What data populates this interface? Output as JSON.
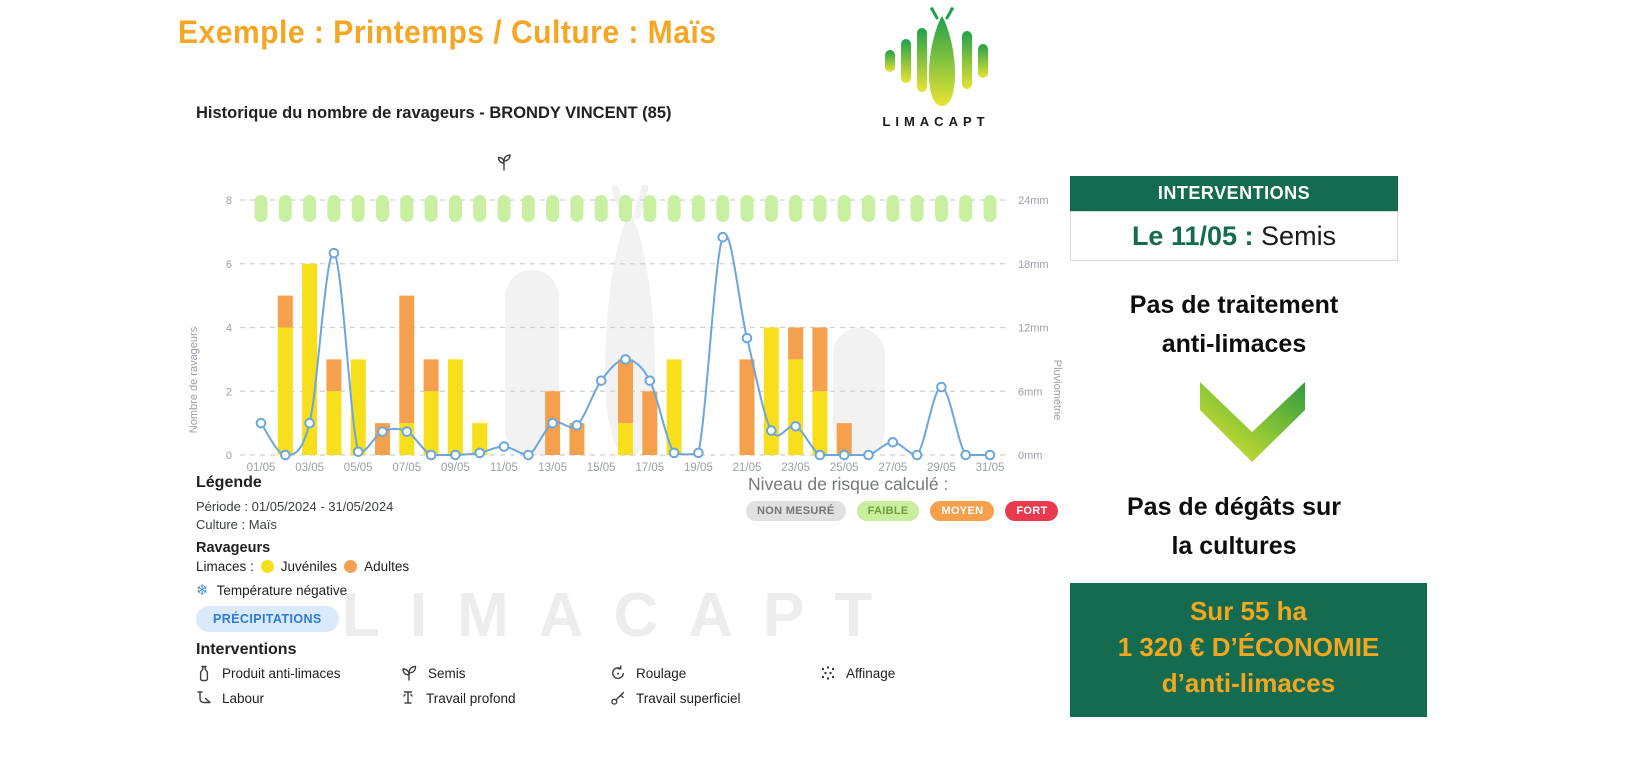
{
  "page_title": "Exemple : Printemps / Culture : Maïs",
  "logo": {
    "wordmark": "LIMACAPT"
  },
  "watermark": "LIMACAPT",
  "chart": {
    "title": "Historique du nombre de ravageurs - BRONDY VINCENT (85)"
  },
  "chart_data": {
    "type": "bar+line",
    "title": "Historique du nombre de ravageurs - BRONDY VINCENT (85)",
    "grid": "dashed-horizontal",
    "categories": [
      "01/05",
      "02/05",
      "03/05",
      "04/05",
      "05/05",
      "06/05",
      "07/05",
      "08/05",
      "09/05",
      "10/05",
      "11/05",
      "12/05",
      "13/05",
      "14/05",
      "15/05",
      "16/05",
      "17/05",
      "18/05",
      "19/05",
      "20/05",
      "21/05",
      "22/05",
      "23/05",
      "24/05",
      "25/05",
      "26/05",
      "27/05",
      "28/05",
      "29/05",
      "30/05",
      "31/05"
    ],
    "x_tick_labels": [
      "01/05",
      "03/05",
      "05/05",
      "07/05",
      "09/05",
      "11/05",
      "13/05",
      "15/05",
      "17/05",
      "19/05",
      "21/05",
      "23/05",
      "25/05",
      "27/05",
      "29/05",
      "31/05"
    ],
    "y_left": {
      "label": "Nombre de ravageurs",
      "min": 0,
      "max": 8,
      "ticks": [
        0,
        2,
        4,
        6,
        8
      ]
    },
    "y_right": {
      "label": "Pluviométrie",
      "min": 0,
      "max": 24,
      "tick_labels": [
        "0mm",
        "6mm",
        "12mm",
        "18mm",
        "24mm"
      ]
    },
    "series": [
      {
        "name": "Juvéniles",
        "type": "bar",
        "stack": "ravageurs",
        "color": "#F7DF1C",
        "values": [
          0,
          4,
          6,
          2,
          3,
          0,
          1,
          2,
          3,
          1,
          0,
          0,
          0,
          0,
          0,
          1,
          0,
          3,
          0,
          0,
          0,
          4,
          3,
          2,
          0,
          0,
          0,
          0,
          0,
          0,
          0
        ]
      },
      {
        "name": "Adultes",
        "type": "bar",
        "stack": "ravageurs",
        "color": "#F5A04C",
        "values": [
          0,
          1,
          0,
          1,
          0,
          1,
          4,
          1,
          0,
          0,
          0,
          0,
          2,
          1,
          0,
          2,
          2,
          0,
          0,
          0,
          3,
          0,
          1,
          2,
          1,
          0,
          0,
          0,
          0,
          0,
          0
        ]
      },
      {
        "name": "Précipitations",
        "type": "line",
        "axis": "right",
        "unit": "mm",
        "color": "#6BA7DB",
        "values": [
          3,
          0,
          3,
          19,
          0.3,
          2.2,
          2.2,
          0,
          0,
          0.2,
          0.8,
          0,
          3,
          2.8,
          7,
          9,
          7,
          0.2,
          0.2,
          20.5,
          11,
          2.3,
          2.7,
          0,
          0,
          0,
          1.2,
          0,
          6.4,
          0,
          0
        ]
      }
    ],
    "risk_row": {
      "color": "#C9EFA0",
      "levels": [
        "FAIBLE",
        "FAIBLE",
        "FAIBLE",
        "FAIBLE",
        "FAIBLE",
        "FAIBLE",
        "FAIBLE",
        "FAIBLE",
        "FAIBLE",
        "FAIBLE",
        "FAIBLE",
        "FAIBLE",
        "FAIBLE",
        "FAIBLE",
        "FAIBLE",
        "FAIBLE",
        "FAIBLE",
        "FAIBLE",
        "FAIBLE",
        "FAIBLE",
        "FAIBLE",
        "FAIBLE",
        "FAIBLE",
        "FAIBLE",
        "FAIBLE",
        "FAIBLE",
        "FAIBLE",
        "FAIBLE",
        "FAIBLE",
        "FAIBLE",
        "FAIBLE"
      ]
    },
    "event_markers": [
      {
        "date": "11/05",
        "type": "semis",
        "icon": "sprout-icon"
      }
    ]
  },
  "legend": {
    "heading": "Légende",
    "periode": "Période : 01/05/2024 - 31/05/2024",
    "culture": "Culture : Maïs",
    "ravageurs_heading": "Ravageurs",
    "limaces_label": "Limaces :",
    "juveniles": "Juvéniles",
    "adultes": "Adultes",
    "temperature": "Température négative",
    "precipitations_chip": "PRÉCIPITATIONS"
  },
  "risk": {
    "label": "Niveau de risque calculé :",
    "badges": [
      {
        "label": "NON MESURÉ",
        "bg": "#E0E0E0",
        "fg": "#757575"
      },
      {
        "label": "FAIBLE",
        "bg": "#C9EE9E",
        "fg": "#6E9E3C"
      },
      {
        "label": "MOYEN",
        "bg": "#F5A04C",
        "fg": "#FFFFFF"
      },
      {
        "label": "FORT",
        "bg": "#E83B50",
        "fg": "#FFFFFF"
      }
    ]
  },
  "interventions_legend": {
    "heading": "Interventions",
    "items": [
      {
        "label": "Produit anti-limaces",
        "icon": "bottle-icon"
      },
      {
        "label": "Labour",
        "icon": "plow-icon"
      },
      {
        "label": "Semis",
        "icon": "sprout-icon"
      },
      {
        "label": "Travail profond",
        "icon": "deep-till-icon"
      },
      {
        "label": "Roulage",
        "icon": "roller-icon"
      },
      {
        "label": "Travail superficiel",
        "icon": "shallow-till-icon"
      },
      {
        "label": "Affinage",
        "icon": "dots-icon"
      }
    ]
  },
  "panel": {
    "header": "INTERVENTIONS",
    "event_date": "Le 11/05 :",
    "event_name": "Semis",
    "no_treatment_line1": "Pas de traitement",
    "no_treatment_line2": "anti-limaces",
    "no_damage_line1": "Pas de dégâts sur",
    "no_damage_line2": "la cultures",
    "savings_line1": "Sur 55 ha",
    "savings_line2": "1 320 € D’ÉCONOMIE",
    "savings_line3": "d’anti-limaces"
  },
  "colors": {
    "accent_orange": "#F5A623",
    "dark_green": "#146B4F",
    "savings_text": "#F2A71E",
    "line_blue": "#6BA7DB",
    "bar_yellow": "#F7DF1C",
    "bar_orange": "#F5A04C",
    "risk_capsule_green": "#C9EFA0",
    "grid_gray": "#CFCFCF"
  }
}
